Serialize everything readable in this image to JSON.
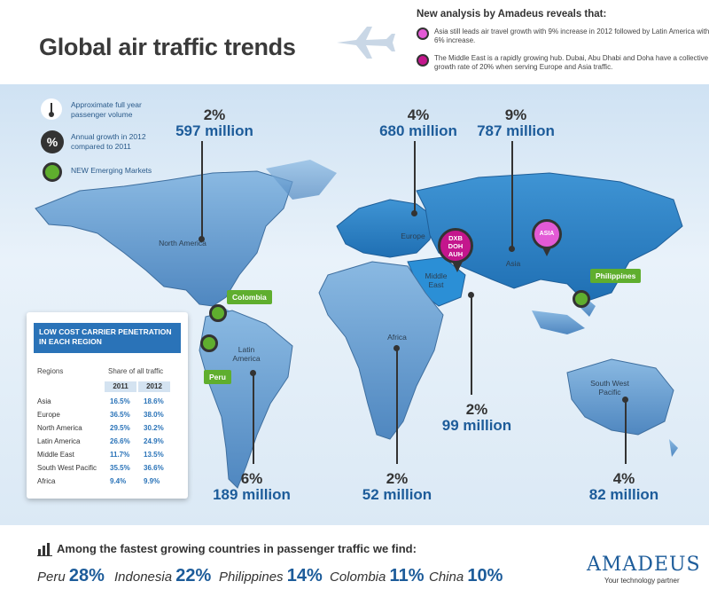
{
  "header": {
    "title": "Global air traffic trends",
    "analysis_heading": "New analysis by Amadeus reveals that:",
    "analysis_points": [
      "Asia still leads air travel growth with 9% increase in 2012 followed by Latin America with 6% increase.",
      "The Middle East is a rapidly growing hub. Dubai, Abu Dhabi and Doha have a collective growth rate of 20% when serving Europe and Asia traffic."
    ]
  },
  "legend": {
    "volume": "Approximate full year passenger volume",
    "growth": "Annual growth in 2012 compared to 2011",
    "emerging": "NEW Emerging Markets"
  },
  "regions": {
    "north_america": {
      "label": "North America",
      "pct": "2%",
      "volume": "597 million"
    },
    "europe": {
      "label": "Europe",
      "pct": "4%",
      "volume": "680 million"
    },
    "asia": {
      "label": "Asia",
      "pct": "9%",
      "volume": "787 million"
    },
    "middle_east": {
      "label": "Middle East",
      "pct": "2%",
      "volume": "99 million"
    },
    "africa": {
      "label": "Africa",
      "pct": "2%",
      "volume": "52 million"
    },
    "latin_america": {
      "label": "Latin America",
      "pct": "6%",
      "volume": "189 million"
    },
    "swp": {
      "label": "South West Pacific",
      "pct": "4%",
      "volume": "82 million"
    }
  },
  "pins": {
    "middle_east_codes": "DXB DOH AUH",
    "asia_pin": "ASIA",
    "colombia": "Colombia",
    "peru": "Peru",
    "philippines": "Philippines"
  },
  "table": {
    "title": "LOW COST CARRIER PENETRATION IN EACH REGION",
    "col_regions": "Regions",
    "col_share": "Share of all traffic",
    "year_2011": "2011",
    "year_2012": "2012",
    "rows": [
      {
        "region": "Asia",
        "y2011": "16.5%",
        "y2012": "18.6%"
      },
      {
        "region": "Europe",
        "y2011": "36.5%",
        "y2012": "38.0%"
      },
      {
        "region": "North America",
        "y2011": "29.5%",
        "y2012": "30.2%"
      },
      {
        "region": "Latin America",
        "y2011": "26.6%",
        "y2012": "24.9%"
      },
      {
        "region": "Middle East",
        "y2011": "11.7%",
        "y2012": "13.5%"
      },
      {
        "region": "South West Pacific",
        "y2011": "35.5%",
        "y2012": "36.6%"
      },
      {
        "region": "Africa",
        "y2011": "9.4%",
        "y2012": "9.9%"
      }
    ]
  },
  "footer": {
    "heading": "Among the fastest growing countries in passenger traffic we find:",
    "countries": [
      {
        "name": "Peru",
        "pct": "28%"
      },
      {
        "name": "Indonesia",
        "pct": "22%"
      },
      {
        "name": "Philippines",
        "pct": "14%"
      },
      {
        "name": "Colombia",
        "pct": "11%"
      },
      {
        "name": "China",
        "pct": "10%"
      }
    ],
    "logo": "AMADEUS",
    "tagline": "Your technology partner"
  },
  "colors": {
    "accent_blue": "#1d5c9a",
    "emerging_green": "#5fae2e",
    "hub_magenta": "#c4168d",
    "land_blue": "#6fa4d6"
  }
}
